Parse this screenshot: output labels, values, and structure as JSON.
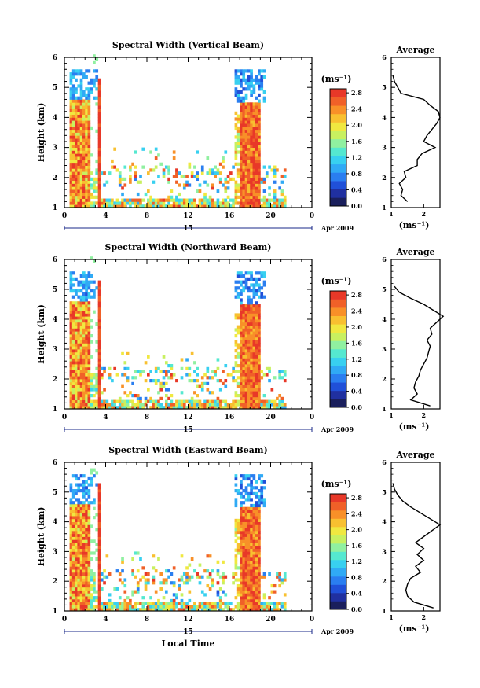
{
  "chart_data": {
    "type": "heatmap",
    "palette": [
      "#1a1f5c",
      "#2030a0",
      "#2050d8",
      "#2a7ef0",
      "#30aaf5",
      "#38d0f0",
      "#55e8d0",
      "#90f0a0",
      "#c8f060",
      "#f0e840",
      "#f8c030",
      "#f89028",
      "#f06028",
      "#e83828"
    ],
    "colorbar": {
      "label": "(ms⁻¹)",
      "ticks": [
        "0.0",
        "0.4",
        "0.8",
        "1.2",
        "1.6",
        "2.0",
        "2.4",
        "2.8"
      ],
      "tick_values": [
        0.0,
        0.4,
        0.8,
        1.2,
        1.6,
        2.0,
        2.4,
        2.8
      ],
      "range": [
        0.0,
        2.9
      ]
    },
    "x_ticks": [
      "0",
      "4",
      "8",
      "12",
      "16",
      "20",
      "0"
    ],
    "x_tick_values": [
      0,
      4,
      8,
      12,
      16,
      20,
      24
    ],
    "xlim": [
      0,
      24
    ],
    "y_ticks": [
      "1",
      "2",
      "3",
      "4",
      "5",
      "6"
    ],
    "y_tick_values": [
      1,
      2,
      3,
      4,
      5,
      6
    ],
    "ylim": [
      1,
      6
    ],
    "ylabel": "Height (km)",
    "date_label": "15",
    "month_label": "Apr 2009",
    "xlabel_bottom": "Local Time",
    "average_title": "Average",
    "average_xlabel": "(ms⁻¹)",
    "panels": [
      {
        "title": "Spectral Width (Vertical Beam)",
        "avg_ticks": [
          "1",
          "2"
        ],
        "avg_tick_values": [
          1,
          2
        ],
        "avg_xlim": [
          1,
          2.5
        ],
        "avg_profile_h": [
          1.2,
          1.4,
          1.6,
          1.8,
          2.0,
          2.2,
          2.4,
          2.6,
          2.8,
          3.0,
          3.2,
          3.4,
          3.6,
          3.8,
          4.0,
          4.2,
          4.4,
          4.6,
          4.8,
          5.0,
          5.2,
          5.4
        ],
        "avg_profile_v": [
          1.5,
          1.3,
          1.35,
          1.25,
          1.45,
          1.4,
          1.8,
          1.8,
          1.95,
          2.35,
          2.0,
          2.1,
          2.25,
          2.4,
          2.5,
          2.45,
          2.2,
          2.0,
          1.3,
          1.2,
          1.1,
          1.05
        ]
      },
      {
        "title": "Spectral Width (Northward Beam)",
        "avg_ticks": [
          "1",
          "2"
        ],
        "avg_tick_values": [
          1,
          2
        ],
        "avg_xlim": [
          1,
          2.5
        ],
        "avg_profile_h": [
          1.1,
          1.3,
          1.5,
          1.7,
          1.9,
          2.1,
          2.3,
          2.5,
          2.7,
          2.9,
          3.1,
          3.3,
          3.5,
          3.7,
          3.9,
          4.1,
          4.3,
          4.5,
          4.7,
          4.9,
          5.1
        ],
        "avg_profile_v": [
          2.2,
          1.6,
          1.8,
          1.7,
          1.75,
          1.85,
          1.9,
          2.0,
          2.1,
          2.15,
          2.2,
          2.1,
          2.25,
          2.2,
          2.4,
          2.6,
          2.3,
          2.0,
          1.6,
          1.25,
          1.1
        ]
      },
      {
        "title": "Spectral Width (Eastward Beam)",
        "avg_ticks": [
          "1",
          "2"
        ],
        "avg_tick_values": [
          1,
          2
        ],
        "avg_xlim": [
          1,
          2.5
        ],
        "avg_profile_h": [
          1.1,
          1.3,
          1.5,
          1.7,
          1.9,
          2.1,
          2.3,
          2.5,
          2.7,
          2.9,
          3.1,
          3.3,
          3.5,
          3.7,
          3.9,
          4.1,
          4.3,
          4.5,
          4.7,
          4.9,
          5.1,
          5.3
        ],
        "avg_profile_v": [
          2.3,
          1.7,
          1.5,
          1.45,
          1.5,
          1.6,
          1.9,
          1.75,
          2.0,
          1.8,
          2.0,
          1.75,
          2.0,
          2.25,
          2.5,
          2.2,
          1.9,
          1.6,
          1.35,
          1.2,
          1.1,
          1.05
        ]
      }
    ]
  }
}
